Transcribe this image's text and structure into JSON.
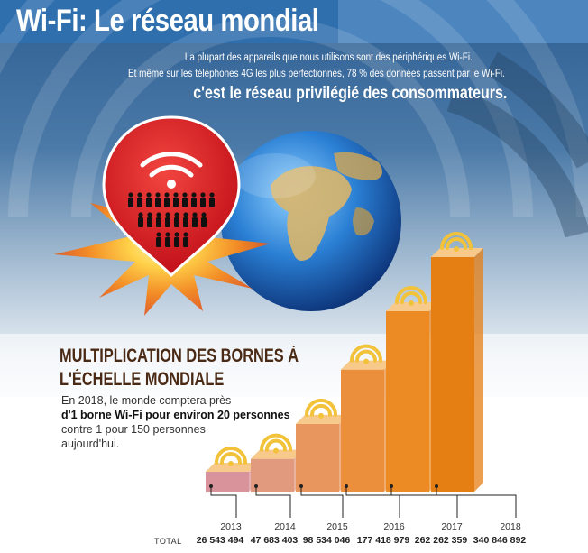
{
  "header": {
    "title": "Wi-Fi:  Le réseau mondial",
    "intro_line1": "La plupart des appareils que nous utilisons sont des périphériques Wi-Fi.",
    "intro_line2": "Et même sur les téléphones 4G les plus perfectionnés, 78 % des données passent par le Wi-Fi.",
    "tagline": "c'est le réseau privilégié des consommateurs."
  },
  "section": {
    "title_line1": "MULTIPLICATION DES BORNES À",
    "title_line2": "L'ÉCHELLE MONDIALE",
    "text_line1": "En 2018, le monde comptera près",
    "text_line2": "d'1 borne Wi-Fi pour environ 20 personnes",
    "text_line3": "contre 1 pour 150 personnes",
    "text_line4": "aujourd'hui."
  },
  "colors": {
    "title_bar": "#2f6fae",
    "sky": "#3d6fa3",
    "pin_red": "#e5262b",
    "burst": "#ef7d2a",
    "bar_shades": [
      "#d9939a",
      "#e29a7f",
      "#e8955e",
      "#ec8f3c",
      "#ec8a24",
      "#e57f14"
    ],
    "wifi_icon": "#f2c23a"
  },
  "icons": [
    "wifi-icon",
    "person-icon",
    "map-pin-icon",
    "globe-icon"
  ],
  "chart_data": {
    "type": "bar",
    "title": "MULTIPLICATION DES BORNES À L'ÉCHELLE MONDIALE",
    "categories": [
      "2013",
      "2014",
      "2015",
      "2016",
      "2017",
      "2018"
    ],
    "series": [
      {
        "name": "TOTAL",
        "values": [
          26543494,
          47683403,
          98534046,
          177418979,
          262262359,
          340846892
        ],
        "labels": [
          "26 543 494",
          "47 683 403",
          "98 534 046",
          "177 418 979",
          "262 262 359",
          "340 846 892"
        ]
      }
    ],
    "row_label": "TOTAL"
  }
}
